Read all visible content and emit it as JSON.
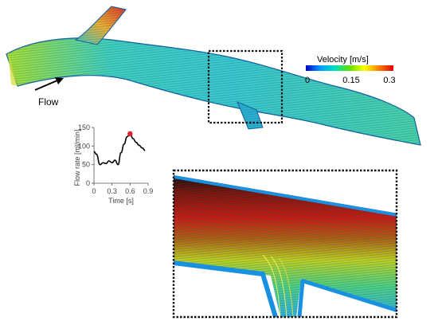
{
  "colorbar": {
    "title": "Velocity [m/s]",
    "tick_labels": [
      "0",
      "0.15",
      "0.3"
    ],
    "colors": [
      "#0000c8",
      "#00a0ff",
      "#00e0c0",
      "#60e000",
      "#ffff00",
      "#ff8000",
      "#e00000"
    ]
  },
  "flow_label": "Flow",
  "chart_data": {
    "type": "line",
    "title": "",
    "xlabel": "Time [s]",
    "ylabel": "Flow rate [ml/min]",
    "xlim": [
      0,
      0.9
    ],
    "ylim": [
      0,
      150
    ],
    "x_ticks": [
      "0",
      "0.3",
      "0.6",
      "0.9"
    ],
    "y_ticks": [
      "0",
      "50",
      "100",
      "150"
    ],
    "x": [
      0.0,
      0.04,
      0.1,
      0.15,
      0.2,
      0.25,
      0.3,
      0.35,
      0.4,
      0.45,
      0.5,
      0.55,
      0.6,
      0.65,
      0.7,
      0.75,
      0.8,
      0.85
    ],
    "y": [
      85,
      78,
      50,
      55,
      53,
      60,
      55,
      62,
      50,
      82,
      105,
      125,
      133,
      120,
      110,
      102,
      95,
      88
    ],
    "highlight": {
      "x": 0.6,
      "y": 133,
      "color": "#e0202a"
    },
    "grid": false
  }
}
